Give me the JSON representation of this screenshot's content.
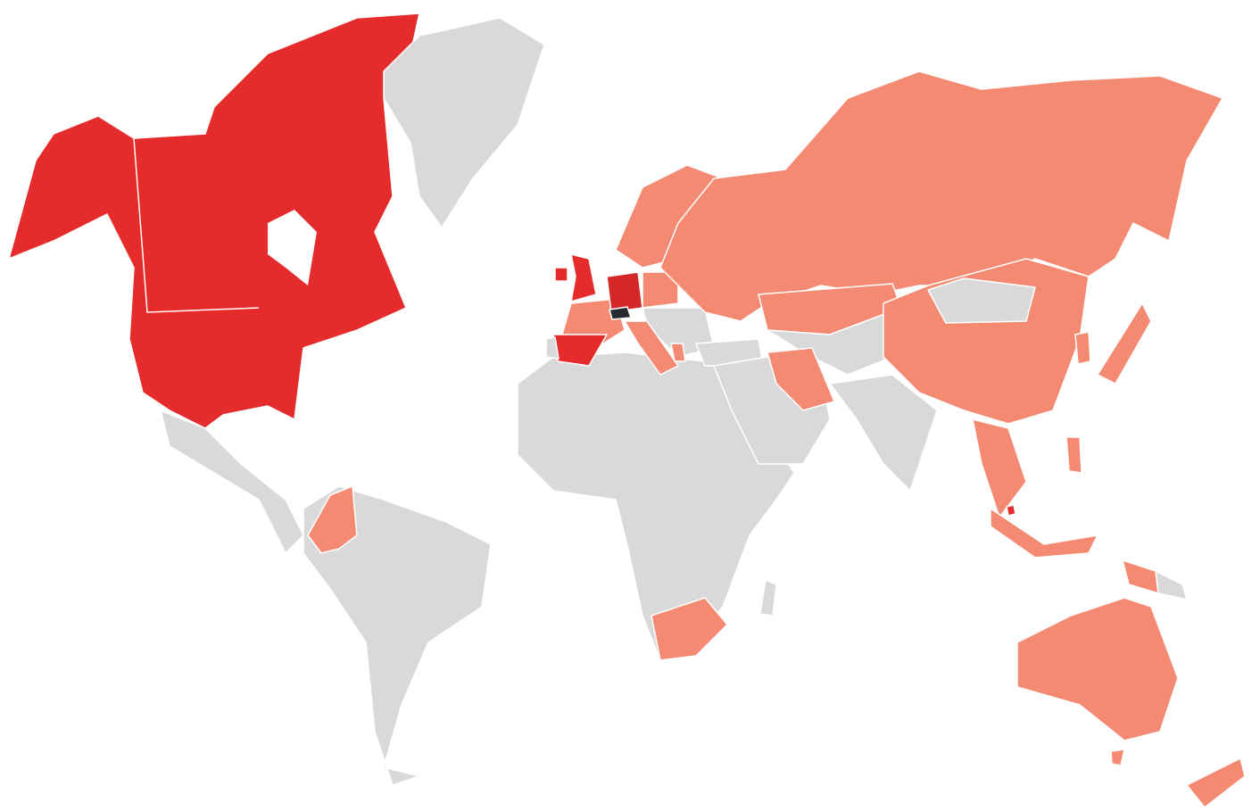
{
  "map": {
    "type": "choropleth",
    "colors": {
      "high": "#e52b2b",
      "high_dark": "#d42828",
      "medium": "#f48a72",
      "none": "#d9d9d9",
      "highlight": "#2a2a33",
      "background": "#ffffff",
      "border": "#ffffff"
    }
  }
}
